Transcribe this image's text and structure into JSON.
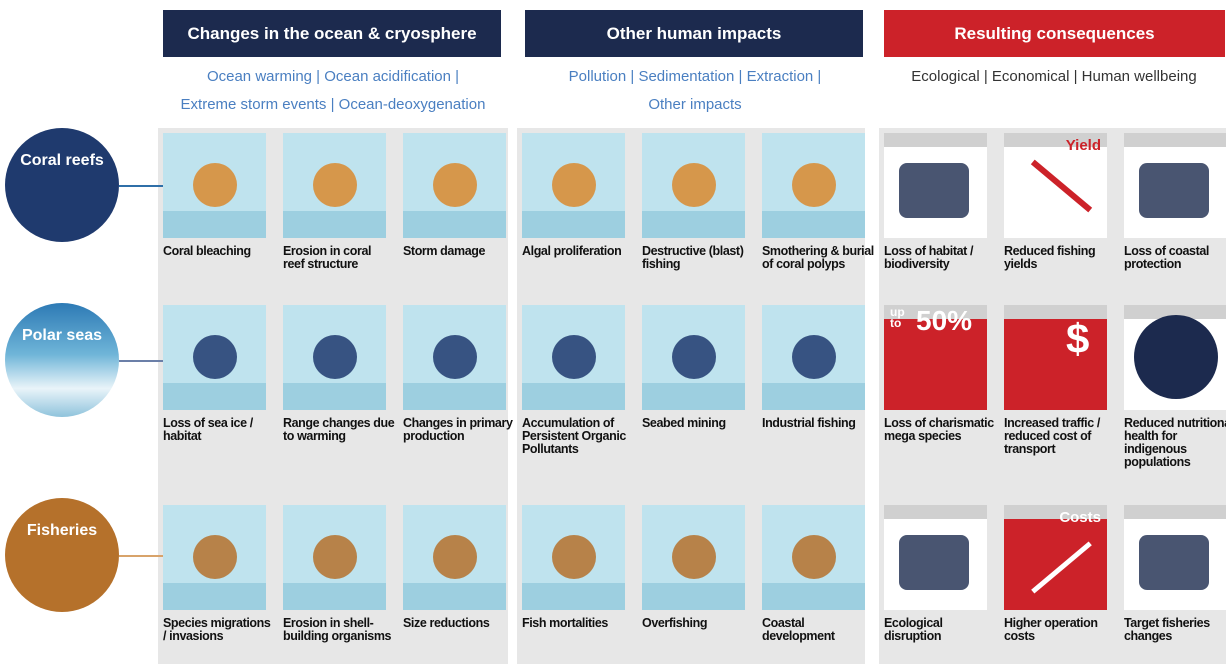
{
  "columns": [
    {
      "header": "Changes in the ocean & cryosphere",
      "subtitle": [
        "Ocean warming | Ocean acidification |",
        "Extreme storm events | Ocean-deoxygenation"
      ]
    },
    {
      "header": "Other human impacts",
      "subtitle": [
        "Pollution | Sedimentation | Extraction |",
        "Other impacts"
      ]
    },
    {
      "header": "Resulting consequences",
      "subtitle": [
        "Ecological | Economical | Human wellbeing"
      ]
    }
  ],
  "rows": [
    {
      "label": "Coral reefs",
      "cells": [
        "Coral bleaching",
        "Erosion in coral reef structure",
        "Storm damage",
        "Algal proliferation",
        "Destructive (blast) fishing",
        "Smothering & burial of coral polyps",
        "Loss of habitat / biodiversity",
        "Reduced fishing yields",
        "Loss of coastal protection"
      ]
    },
    {
      "label": "Polar seas",
      "cells": [
        "Loss of sea ice / habitat",
        "Range changes due to warming",
        "Changes in primary production",
        "Accumulation of Persistent Organic Pollutants",
        "Seabed mining",
        "Industrial fishing",
        "Loss of charismatic mega species",
        "Increased traffic / reduced cost of transport",
        "Reduced nutritional health for indigenous populations"
      ]
    },
    {
      "label": "Fisheries",
      "cells": [
        "Species migrations / invasions",
        "Erosion in shell-building organisms",
        "Size reductions",
        "Fish mortalities",
        "Overfishing",
        "Coastal development",
        "Ecological disruption",
        "Higher operation costs",
        "Target fisheries changes"
      ]
    }
  ],
  "icons": {
    "yield": "Yield",
    "up_to": "up to",
    "percent": "50%",
    "currency": "$",
    "costs": "Costs"
  }
}
